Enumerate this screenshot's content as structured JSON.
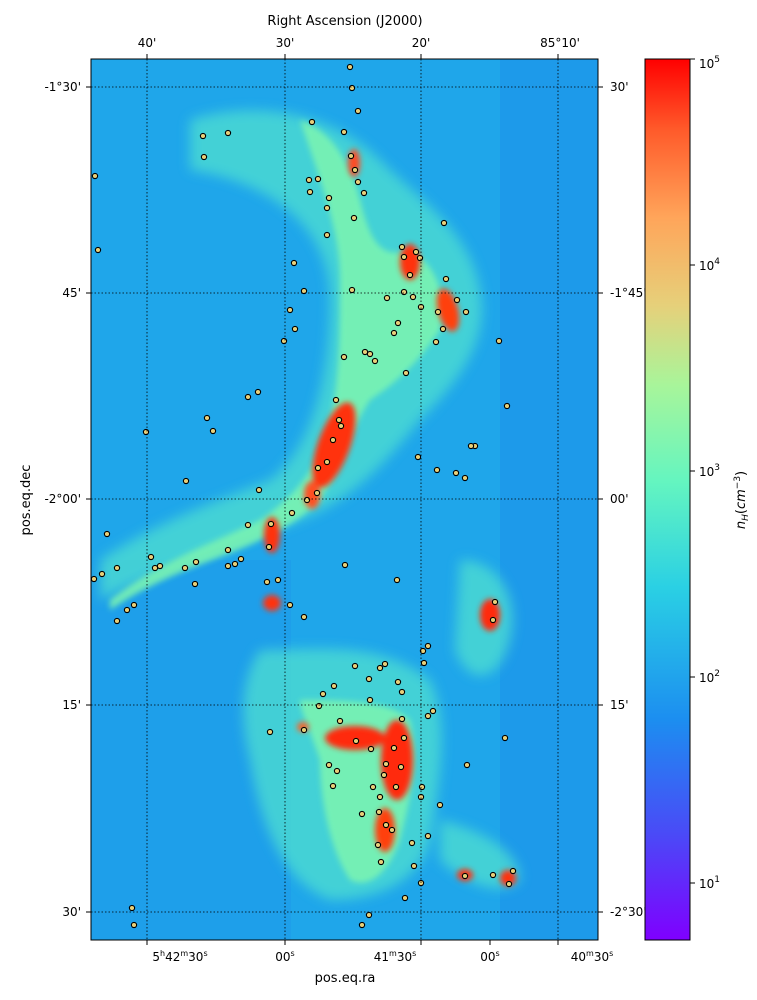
{
  "chart_data": {
    "type": "heatmap",
    "description_axes": {
      "top_xlabel": "Right Ascension (J2000)",
      "bottom_xlabel": "pos.eq.ra",
      "left_ylabel": "pos.eq.dec"
    },
    "top_ticks": [
      "40'",
      "30'",
      "20'",
      "85°10'"
    ],
    "bottom_ticks": [
      {
        "h": "5",
        "m": "42",
        "s": "30"
      },
      {
        "h": "",
        "m": "",
        "s": "00"
      },
      {
        "h": "",
        "m": "41",
        "s": "30"
      },
      {
        "h": "",
        "m": "",
        "s": "00"
      },
      {
        "h": "",
        "m": "40",
        "s": "30"
      }
    ],
    "left_ticks": [
      "-1°30'",
      "45'",
      "-2°00'",
      "15'",
      "30'"
    ],
    "right_ticks": [
      "30'",
      "-1°45'",
      "00'",
      "15'",
      "-2°30'"
    ],
    "colorbar": {
      "label": "n_H(cm^-3)",
      "scale": "log",
      "range": [
        5,
        100000
      ],
      "ticks": [
        {
          "base": "10",
          "exp": "1"
        },
        {
          "base": "10",
          "exp": "2"
        },
        {
          "base": "10",
          "exp": "3"
        },
        {
          "base": "10",
          "exp": "4"
        },
        {
          "base": "10",
          "exp": "5"
        }
      ],
      "colormap": "rainbow"
    },
    "grid": true,
    "grid_style": "dotted",
    "colors": {
      "background": "#1fa6ea",
      "filament": "#6ff5b6",
      "dense": "#ff2a10",
      "core_marker": "#e8d07a"
    },
    "dense_clumps_approx": [
      {
        "ra_label": "~5h41m40s",
        "dec_label": "~-1°53'",
        "density": "1e4-1e5"
      },
      {
        "ra_label": "~5h41m35s",
        "dec_label": "~-2°18'",
        "density": "1e4-1e5"
      },
      {
        "ra_label": "~5h41m25s",
        "dec_label": "~-1°43'",
        "density": "1e4-1e5"
      },
      {
        "ra_label": "~5h40m55s",
        "dec_label": "~-2°08'",
        "density": "1e4"
      }
    ]
  }
}
